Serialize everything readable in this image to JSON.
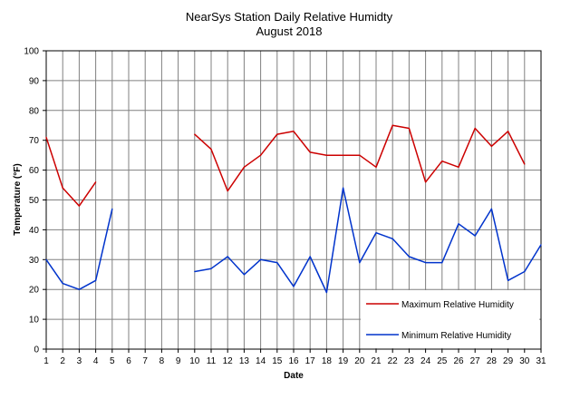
{
  "chart_data": {
    "type": "line",
    "title": "NearSys Station Daily Relative Humidty",
    "subtitle": "August 2018",
    "xlabel": "Date",
    "ylabel": "Temperature (°F)",
    "x": [
      1,
      2,
      3,
      4,
      5,
      6,
      7,
      8,
      9,
      10,
      11,
      12,
      13,
      14,
      15,
      16,
      17,
      18,
      19,
      20,
      21,
      22,
      23,
      24,
      25,
      26,
      27,
      28,
      29,
      30,
      31
    ],
    "xlim": [
      1,
      31
    ],
    "ylim": [
      0,
      100
    ],
    "yticks": [
      0,
      10,
      20,
      30,
      40,
      50,
      60,
      70,
      80,
      90,
      100
    ],
    "grid": true,
    "legend_position": "bottom-right",
    "series": [
      {
        "name": "Maximum Relative Humidity",
        "color": "#cc0000",
        "values": [
          71,
          54,
          48,
          56,
          null,
          null,
          null,
          null,
          null,
          72,
          67,
          53,
          61,
          65,
          72,
          73,
          66,
          65,
          65,
          65,
          61,
          75,
          74,
          56,
          63,
          61,
          74,
          68,
          73,
          62,
          null
        ]
      },
      {
        "name": "Minimum Relative Humidity",
        "color": "#0033cc",
        "values": [
          30,
          22,
          20,
          23,
          47,
          null,
          null,
          null,
          null,
          26,
          27,
          31,
          25,
          30,
          29,
          21,
          31,
          19,
          54,
          29,
          39,
          37,
          31,
          29,
          29,
          42,
          38,
          47,
          23,
          26,
          35
        ]
      }
    ]
  }
}
